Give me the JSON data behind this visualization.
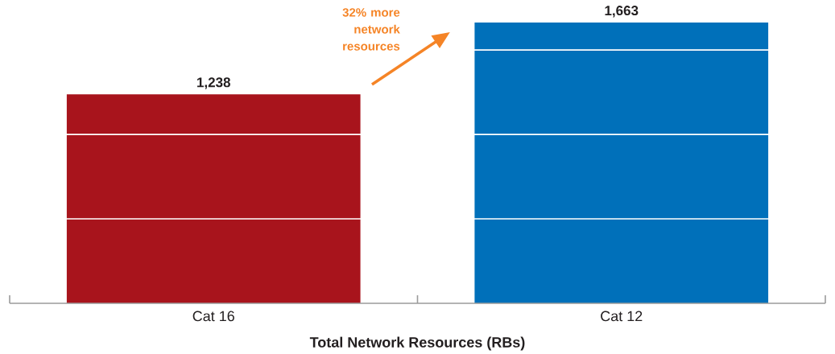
{
  "chart_data": {
    "type": "bar",
    "xlabel": "Total Network Resources (RBs)",
    "categories": [
      "Cat 16",
      "Cat 12"
    ],
    "values": [
      1238,
      1663
    ],
    "colors": [
      "#a8141c",
      "#0070ba"
    ],
    "value_labels": [
      "1,238",
      "1,663"
    ],
    "yticks": [
      {
        "value": 500,
        "label": null
      },
      {
        "value": 1000,
        "label": null
      },
      {
        "value": 1500,
        "label": null
      }
    ],
    "grid": "y",
    "tick_labels": "x",
    "annotations": [
      "32% more network resources"
    ]
  }
}
